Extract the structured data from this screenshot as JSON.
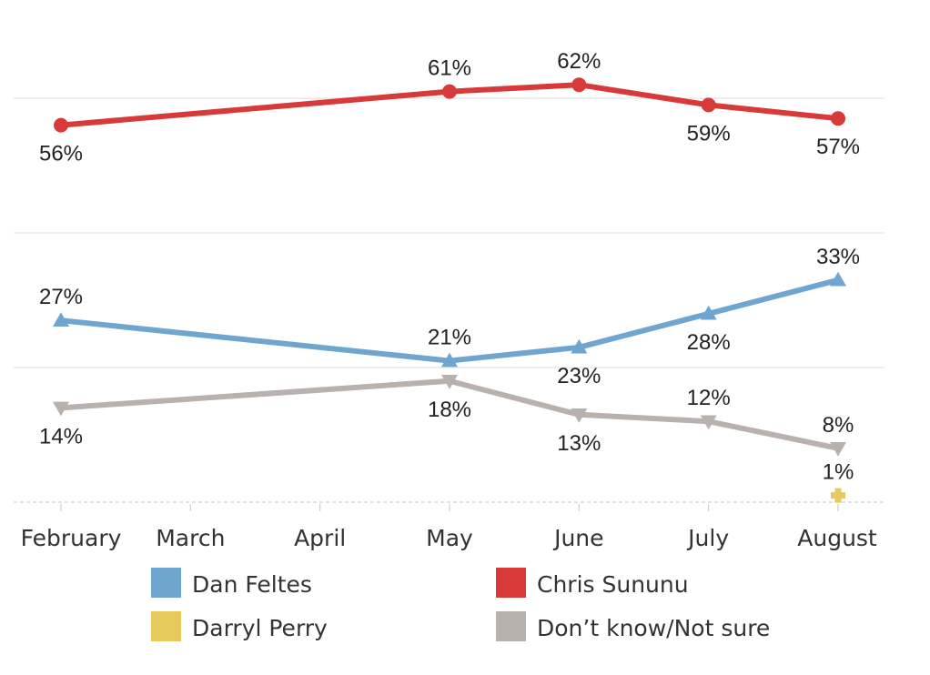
{
  "chart_data": {
    "type": "line",
    "categories": [
      "February",
      "March",
      "April",
      "May",
      "June",
      "July",
      "August"
    ],
    "ylim": [
      0,
      70
    ],
    "grid": true,
    "legend_position": "bottom",
    "series": [
      {
        "name": "Chris Sununu",
        "color": "#d83a3a",
        "marker": "circle",
        "points": [
          {
            "x": "February",
            "y": 56,
            "label": "56%",
            "label_pos": "below"
          },
          {
            "x": "May",
            "y": 61,
            "label": "61%",
            "label_pos": "above"
          },
          {
            "x": "June",
            "y": 62,
            "label": "62%",
            "label_pos": "above"
          },
          {
            "x": "July",
            "y": 59,
            "label": "59%",
            "label_pos": "below"
          },
          {
            "x": "August",
            "y": 57,
            "label": "57%",
            "label_pos": "below"
          }
        ]
      },
      {
        "name": "Dan Feltes",
        "color": "#6fa6d0",
        "marker": "triangle-up",
        "points": [
          {
            "x": "February",
            "y": 27,
            "label": "27%",
            "label_pos": "above"
          },
          {
            "x": "May",
            "y": 21,
            "label": "21%",
            "label_pos": "above"
          },
          {
            "x": "June",
            "y": 23,
            "label": "23%",
            "label_pos": "below"
          },
          {
            "x": "July",
            "y": 28,
            "label": "28%",
            "label_pos": "below"
          },
          {
            "x": "August",
            "y": 33,
            "label": "33%",
            "label_pos": "above"
          }
        ]
      },
      {
        "name": "Don’t know/Not sure",
        "color": "#b9b1ad",
        "marker": "triangle-down",
        "points": [
          {
            "x": "February",
            "y": 14,
            "label": "14%",
            "label_pos": "below"
          },
          {
            "x": "May",
            "y": 18,
            "label": "18%",
            "label_pos": "below"
          },
          {
            "x": "June",
            "y": 13,
            "label": "13%",
            "label_pos": "below"
          },
          {
            "x": "July",
            "y": 12,
            "label": "12%",
            "label_pos": "above"
          },
          {
            "x": "August",
            "y": 8,
            "label": "8%",
            "label_pos": "above"
          }
        ]
      },
      {
        "name": "Darryl Perry",
        "color": "#e8c95c",
        "marker": "plus",
        "points": [
          {
            "x": "August",
            "y": 1,
            "label": "1%",
            "label_pos": "above"
          }
        ]
      }
    ],
    "legend": [
      {
        "name": "Dan Feltes",
        "color": "#6fa6d0"
      },
      {
        "name": "Chris Sununu",
        "color": "#d83a3a"
      },
      {
        "name": "Darryl Perry",
        "color": "#e8c95c"
      },
      {
        "name": "Don’t know/Not sure",
        "color": "#b9b1ad"
      }
    ]
  }
}
